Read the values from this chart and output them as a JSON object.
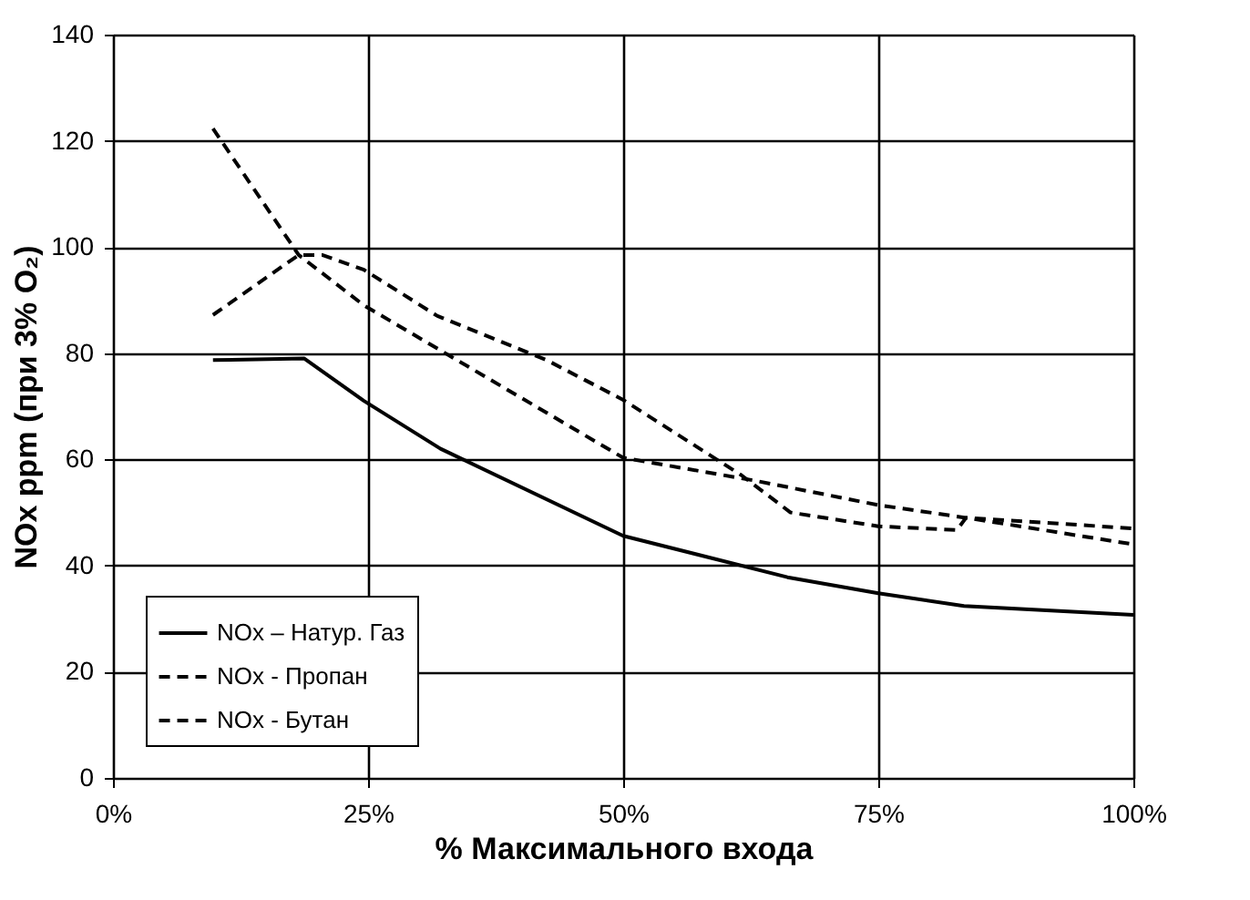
{
  "chart_data": {
    "type": "line",
    "xlabel": "% Максимального входа",
    "ylabel": "NOx ppm (при 3% O₂)",
    "xlim": [
      0,
      100
    ],
    "xticks": [
      {
        "value": 0,
        "label": "0%"
      },
      {
        "value": 25,
        "label": "25%"
      },
      {
        "value": 50,
        "label": "50%"
      },
      {
        "value": 75,
        "label": "75%"
      },
      {
        "value": 100,
        "label": "100%"
      }
    ],
    "ylim": [
      0,
      140
    ],
    "yticks": [
      0,
      20,
      40,
      60,
      80,
      100,
      120,
      140
    ],
    "grid": true,
    "legend": "bottom left",
    "marker": "none",
    "series": [
      {
        "name": "NOx – Натур. Газ",
        "color": "#000000",
        "line_style": "solid",
        "x": [
          9.8,
          18.75,
          24.6,
          32.1,
          50,
          66.1,
          75,
          83.4,
          100
        ],
        "values": [
          78.7,
          79,
          71,
          62,
          45.6,
          37.8,
          34.8,
          32.4,
          30.7
        ]
      },
      {
        "name": "NOx - Пропан",
        "color": "#000000",
        "line_style": "dashed",
        "x": [
          9.8,
          18.2,
          24.6,
          50,
          62.9,
          75,
          83.6,
          100
        ],
        "values": [
          122.3,
          98.5,
          89,
          60.3,
          56,
          51.4,
          49,
          47
        ]
      },
      {
        "name": "NOx - Бутан",
        "color": "#000000",
        "line_style": "dashed",
        "x": [
          9.8,
          18.2,
          20.5,
          24.6,
          31.8,
          42.5,
          50,
          61.6,
          66.4,
          75,
          82.7,
          83.6,
          100
        ],
        "values": [
          87.2,
          98.5,
          98.5,
          95.7,
          87,
          78.7,
          71.2,
          57,
          50,
          47.4,
          46.7,
          49,
          44
        ]
      }
    ]
  }
}
